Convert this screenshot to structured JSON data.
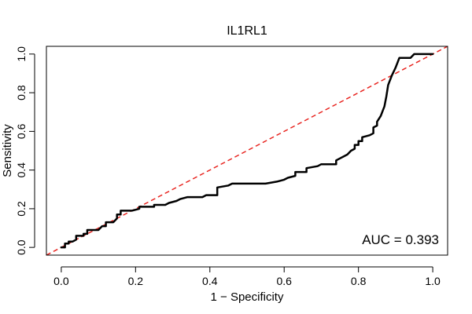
{
  "chart_data": {
    "type": "line",
    "title": "IL1RL1",
    "xlabel": "1 − Specificity",
    "ylabel": "Sensitivity",
    "xlim": [
      -0.04,
      1.04
    ],
    "ylim": [
      -0.04,
      1.04
    ],
    "x_ticks": [
      0.0,
      0.2,
      0.4,
      0.6,
      0.8,
      1.0
    ],
    "y_ticks": [
      0.0,
      0.2,
      0.4,
      0.6,
      0.8,
      1.0
    ],
    "x_tick_labels": [
      "0.0",
      "0.2",
      "0.4",
      "0.6",
      "0.8",
      "1.0"
    ],
    "y_tick_labels": [
      "0.0",
      "0.2",
      "0.4",
      "0.6",
      "0.8",
      "1.0"
    ],
    "annotation": "AUC = 0.393",
    "auc": 0.393,
    "grid": false,
    "series": [
      {
        "name": "ROC curve",
        "color": "#000000",
        "style": "solid",
        "x": [
          0.0,
          0.01,
          0.01,
          0.02,
          0.02,
          0.03,
          0.04,
          0.04,
          0.06,
          0.06,
          0.07,
          0.07,
          0.08,
          0.1,
          0.11,
          0.12,
          0.12,
          0.14,
          0.15,
          0.15,
          0.16,
          0.16,
          0.17,
          0.19,
          0.21,
          0.21,
          0.25,
          0.25,
          0.28,
          0.29,
          0.31,
          0.32,
          0.34,
          0.38,
          0.39,
          0.42,
          0.42,
          0.45,
          0.46,
          0.55,
          0.58,
          0.6,
          0.61,
          0.63,
          0.63,
          0.66,
          0.66,
          0.69,
          0.7,
          0.74,
          0.74,
          0.77,
          0.78,
          0.79,
          0.79,
          0.8,
          0.8,
          0.81,
          0.81,
          0.83,
          0.84,
          0.84,
          0.85,
          0.85,
          0.86,
          0.87,
          0.875,
          0.88,
          0.89,
          0.9,
          0.91,
          0.94,
          0.95,
          1.0
        ],
        "y": [
          0.0,
          0.0,
          0.02,
          0.02,
          0.03,
          0.03,
          0.04,
          0.06,
          0.06,
          0.07,
          0.07,
          0.09,
          0.09,
          0.09,
          0.11,
          0.11,
          0.13,
          0.13,
          0.15,
          0.17,
          0.17,
          0.19,
          0.19,
          0.19,
          0.2,
          0.21,
          0.21,
          0.22,
          0.22,
          0.23,
          0.24,
          0.25,
          0.26,
          0.26,
          0.27,
          0.27,
          0.31,
          0.32,
          0.33,
          0.33,
          0.34,
          0.35,
          0.36,
          0.37,
          0.39,
          0.39,
          0.41,
          0.42,
          0.43,
          0.43,
          0.45,
          0.48,
          0.5,
          0.51,
          0.53,
          0.53,
          0.55,
          0.55,
          0.57,
          0.58,
          0.59,
          0.62,
          0.63,
          0.65,
          0.68,
          0.73,
          0.78,
          0.84,
          0.89,
          0.93,
          0.98,
          0.98,
          1.0,
          1.0
        ]
      },
      {
        "name": "Chance line",
        "color": "#e8211c",
        "style": "dashed",
        "x": [
          -0.04,
          1.04
        ],
        "y": [
          -0.04,
          1.04
        ]
      }
    ]
  }
}
